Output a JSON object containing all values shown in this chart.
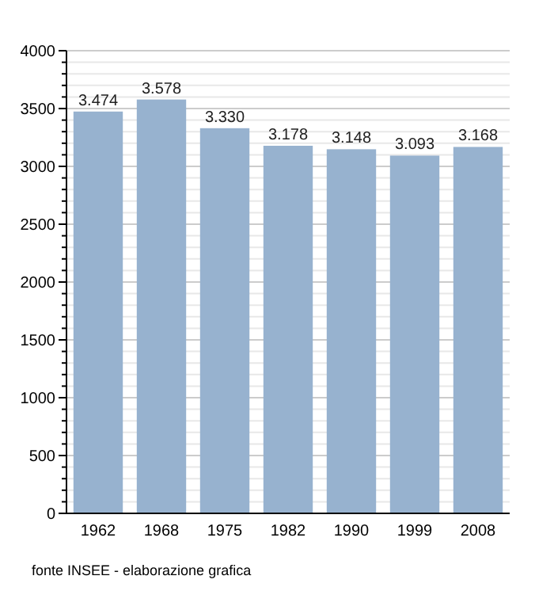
{
  "chart_data": {
    "type": "bar",
    "categories": [
      "1962",
      "1968",
      "1975",
      "1982",
      "1990",
      "1999",
      "2008"
    ],
    "values": [
      3474,
      3578,
      3330,
      3178,
      3148,
      3093,
      3168
    ],
    "value_labels": [
      "3.474",
      "3.578",
      "3.330",
      "3.178",
      "3.148",
      "3.093",
      "3.168"
    ],
    "color": "#97b2cf",
    "ylim": [
      0,
      4000
    ],
    "yticks": [
      0,
      {
        "value": 100,
        "label": null
      },
      {
        "value": 200,
        "label": null
      },
      {
        "value": 300,
        "label": null
      },
      {
        "value": 400,
        "label": null
      },
      500,
      {
        "value": 600,
        "label": null
      },
      {
        "value": 700,
        "label": null
      },
      {
        "value": 800,
        "label": null
      },
      {
        "value": 900,
        "label": null
      },
      1000,
      {
        "value": 1100,
        "label": null
      },
      {
        "value": 1200,
        "label": null
      },
      {
        "value": 1300,
        "label": null
      },
      {
        "value": 1400,
        "label": null
      },
      1500,
      {
        "value": 1600,
        "label": null
      },
      {
        "value": 1700,
        "label": null
      },
      {
        "value": 1800,
        "label": null
      },
      {
        "value": 1900,
        "label": null
      },
      2000,
      {
        "value": 2100,
        "label": null
      },
      {
        "value": 2200,
        "label": null
      },
      {
        "value": 2300,
        "label": null
      },
      {
        "value": 2400,
        "label": null
      },
      2500,
      {
        "value": 2600,
        "label": null
      },
      {
        "value": 2700,
        "label": null
      },
      {
        "value": 2800,
        "label": null
      },
      {
        "value": 2900,
        "label": null
      },
      3000,
      {
        "value": 3100,
        "label": null
      },
      {
        "value": 3200,
        "label": null
      },
      {
        "value": 3300,
        "label": null
      },
      {
        "value": 3400,
        "label": null
      },
      3500,
      {
        "value": 3600,
        "label": null
      },
      {
        "value": 3700,
        "label": null
      },
      {
        "value": 3800,
        "label": null
      },
      {
        "value": 3900,
        "label": null
      },
      4000
    ],
    "grid": "y",
    "annotations": [
      "fonte INSEE - elaborazione grafica"
    ]
  }
}
